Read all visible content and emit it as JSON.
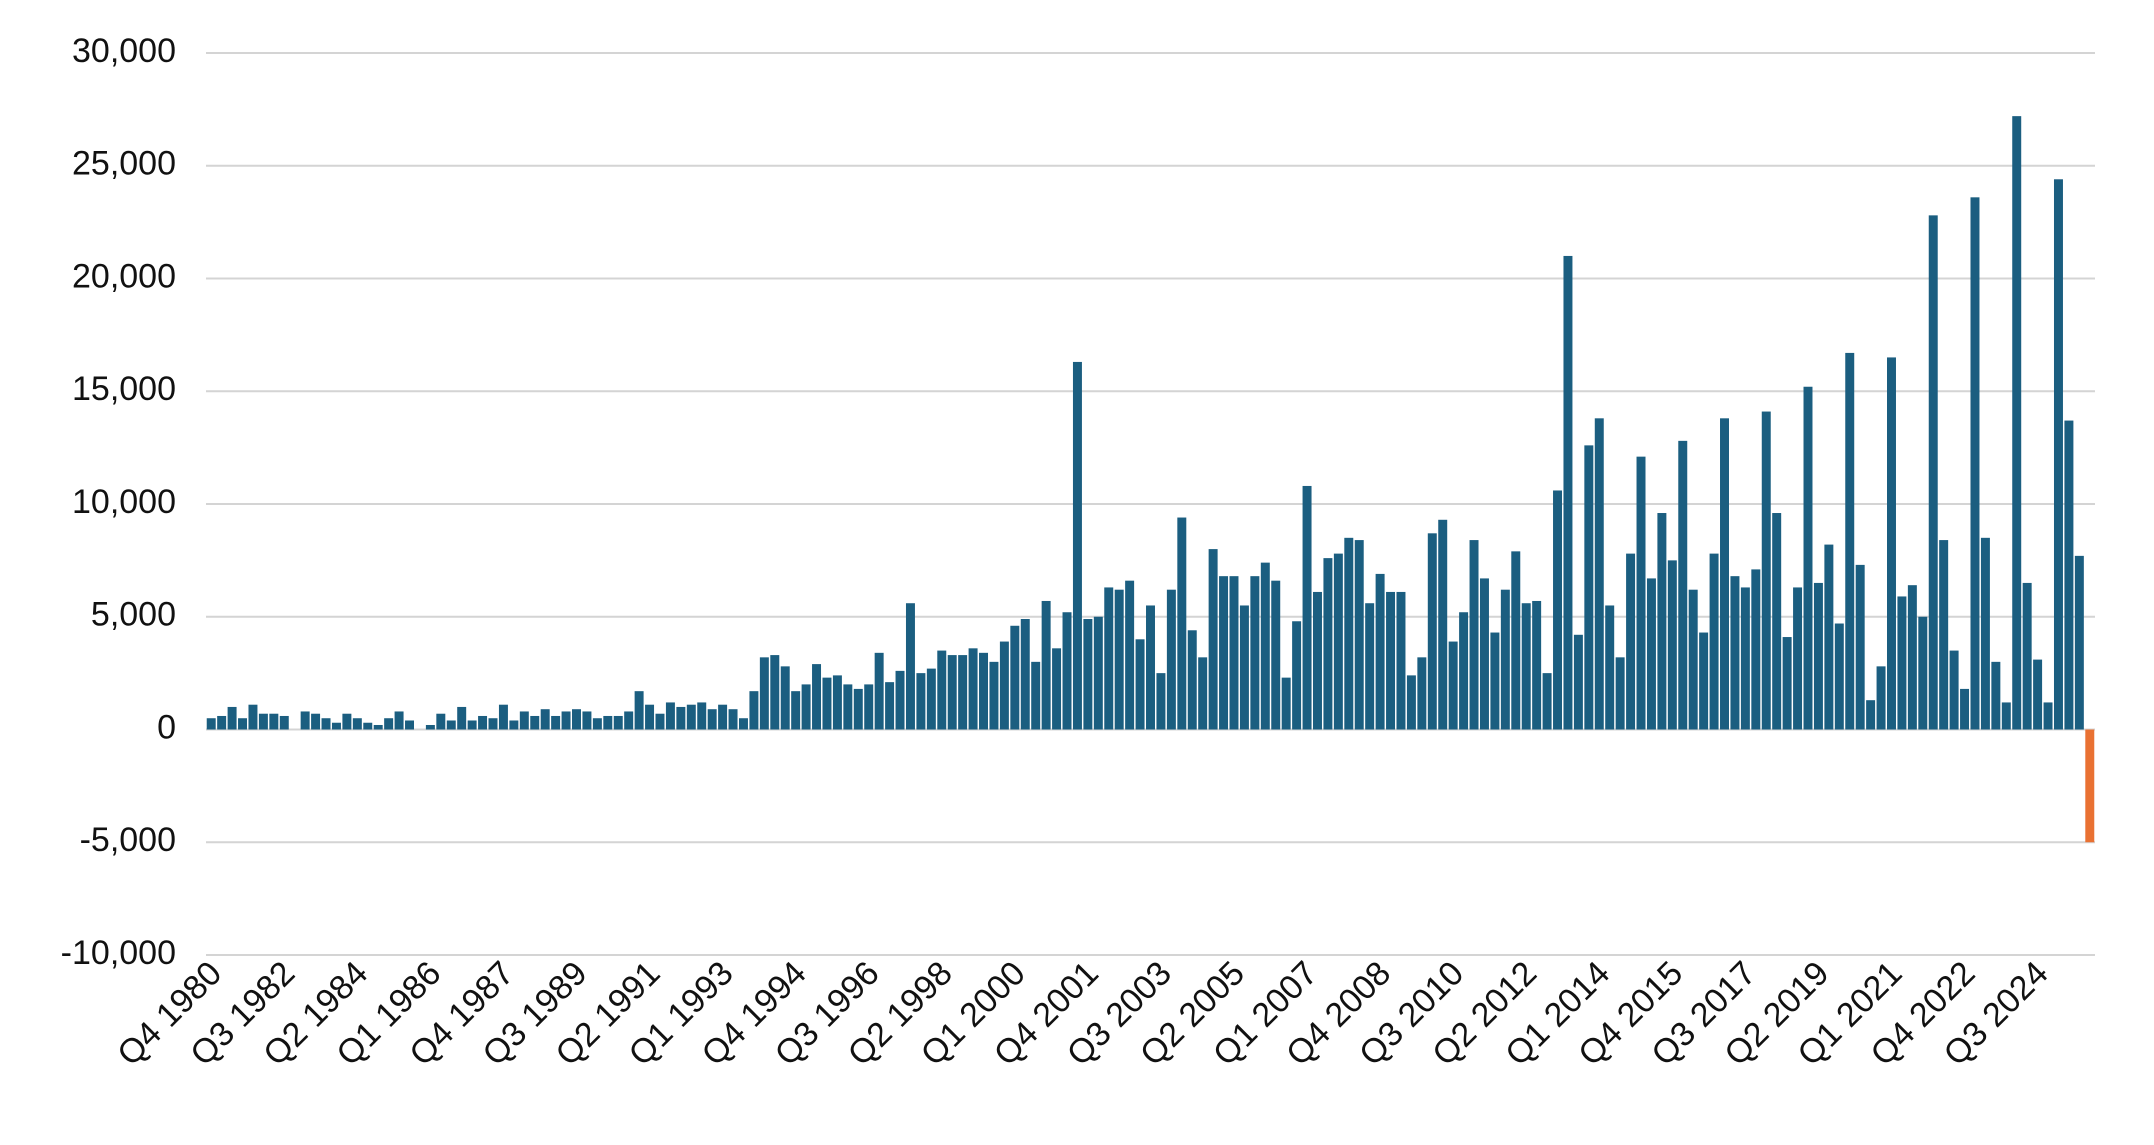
{
  "chart_data": {
    "type": "bar",
    "categories": [
      "Q4 1980",
      null,
      null,
      null,
      null,
      null,
      null,
      "Q3 1982",
      null,
      null,
      null,
      null,
      null,
      null,
      "Q2 1984",
      null,
      null,
      null,
      null,
      null,
      null,
      "Q1 1986",
      null,
      null,
      null,
      null,
      null,
      null,
      "Q4 1987",
      null,
      null,
      null,
      null,
      null,
      null,
      "Q3 1989",
      null,
      null,
      null,
      null,
      null,
      null,
      "Q2 1991",
      null,
      null,
      null,
      null,
      null,
      null,
      "Q1 1993",
      null,
      null,
      null,
      null,
      null,
      null,
      "Q4 1994",
      null,
      null,
      null,
      null,
      null,
      null,
      "Q3 1996",
      null,
      null,
      null,
      null,
      null,
      null,
      "Q2 1998",
      null,
      null,
      null,
      null,
      null,
      null,
      "Q1 2000",
      null,
      null,
      null,
      null,
      null,
      null,
      "Q4 2001",
      null,
      null,
      null,
      null,
      null,
      null,
      "Q3 2003",
      null,
      null,
      null,
      null,
      null,
      null,
      "Q2 2005",
      null,
      null,
      null,
      null,
      null,
      null,
      "Q1 2007",
      null,
      null,
      null,
      null,
      null,
      null,
      "Q4 2008",
      null,
      null,
      null,
      null,
      null,
      null,
      "Q3 2010",
      null,
      null,
      null,
      null,
      null,
      null,
      "Q2 2012",
      null,
      null,
      null,
      null,
      null,
      null,
      "Q1 2014",
      null,
      null,
      null,
      null,
      null,
      null,
      "Q4 2015",
      null,
      null,
      null,
      null,
      null,
      null,
      "Q3 2017",
      null,
      null,
      null,
      null,
      null,
      null,
      "Q2 2019",
      null,
      null,
      null,
      null,
      null,
      null,
      "Q1 2021",
      null,
      null,
      null,
      null,
      null,
      null,
      "Q4 2022",
      null,
      null,
      null,
      null,
      null,
      null,
      "Q3 2024",
      null,
      null,
      null,
      null,
      null
    ],
    "values": [
      500,
      600,
      1000,
      500,
      1100,
      700,
      700,
      600,
      0,
      800,
      700,
      500,
      300,
      700,
      500,
      300,
      200,
      500,
      800,
      400,
      0,
      200,
      700,
      400,
      1000,
      400,
      600,
      500,
      1100,
      400,
      800,
      600,
      900,
      600,
      800,
      900,
      800,
      500,
      600,
      600,
      800,
      1700,
      1100,
      700,
      1200,
      1000,
      1100,
      1200,
      900,
      1100,
      900,
      500,
      1700,
      3200,
      3300,
      2800,
      1700,
      2000,
      2900,
      2300,
      2400,
      2000,
      1800,
      2000,
      3400,
      2100,
      2600,
      5600,
      2500,
      2700,
      3500,
      3300,
      3300,
      3600,
      3400,
      3000,
      3900,
      4600,
      4900,
      3000,
      5700,
      3600,
      5200,
      16300,
      4900,
      5000,
      6300,
      6200,
      6600,
      4000,
      5500,
      2500,
      6200,
      9400,
      4400,
      3200,
      8000,
      6800,
      6800,
      5500,
      6800,
      7400,
      6600,
      2300,
      4800,
      10800,
      6100,
      7600,
      7800,
      8500,
      8400,
      5600,
      6900,
      6100,
      6100,
      2400,
      3200,
      8700,
      9300,
      3900,
      5200,
      8400,
      6700,
      4300,
      6200,
      7900,
      5600,
      5700,
      2500,
      10600,
      21000,
      4200,
      12600,
      13800,
      5500,
      3200,
      7800,
      12100,
      6700,
      9600,
      7500,
      12800,
      6200,
      4300,
      7800,
      13800,
      6800,
      6300,
      7100,
      14100,
      9600,
      4100,
      6300,
      15200,
      6500,
      8200,
      4700,
      16700,
      7300,
      1300,
      2800,
      16500,
      5900,
      6400,
      5000,
      22800,
      8400,
      3500,
      1800,
      23600,
      8500,
      3000,
      1200,
      27200,
      6500,
      3100,
      1200,
      24400,
      13700,
      7700,
      -5000
    ],
    "color": "#1b5e80",
    "negative_color": "#e97132",
    "ylim": [
      -10000,
      30000
    ],
    "yticks": [
      {
        "value": -10000,
        "label": "-10,000"
      },
      {
        "value": -5000,
        "label": "-5,000"
      },
      0,
      {
        "value": 5000,
        "label": "5,000"
      },
      {
        "value": 10000,
        "label": "10,000"
      },
      {
        "value": 15000,
        "label": "15,000"
      },
      {
        "value": 20000,
        "label": "20,000"
      },
      {
        "value": 25000,
        "label": "25,000"
      },
      {
        "value": 30000,
        "label": "30,000"
      }
    ],
    "grid": true
  }
}
